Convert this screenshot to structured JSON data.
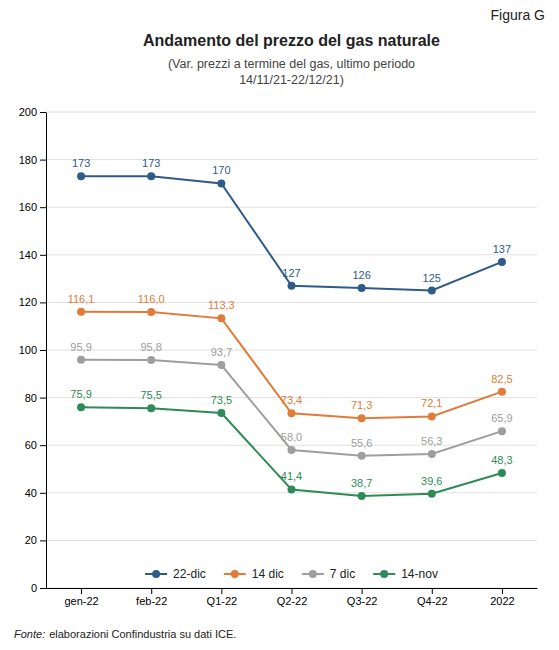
{
  "chart_data": {
    "type": "line",
    "title": "Andamento del prezzo del gas naturale",
    "subtitle": "(Var. prezzi a termine del gas, ultimo periodo\n14/11/21-22/12/21)",
    "annotations": [
      "Figura G",
      "Fonte:",
      "elaborazioni Confindustria su dati ICE."
    ],
    "categories": [
      "gen-22",
      "feb-22",
      "Q1-22",
      "Q2-22",
      "Q3-22",
      "Q4-22",
      "2022"
    ],
    "series": [
      {
        "name": "22-dic",
        "color": "#2E5B8A",
        "values": [
          173,
          173,
          170,
          127,
          126,
          125,
          137
        ],
        "value_labels": [
          "173",
          "173",
          "170",
          "127",
          "126",
          "125",
          "137"
        ]
      },
      {
        "name": "14 dic",
        "color": "#E07B39",
        "values": [
          116.1,
          116.0,
          113.3,
          73.4,
          71.3,
          72.1,
          82.5
        ],
        "value_labels": [
          "116,1",
          "116,0",
          "113,3",
          "73,4",
          "71,3",
          "72,1",
          "82,5"
        ]
      },
      {
        "name": "7 dic",
        "color": "#9E9E9E",
        "values": [
          95.9,
          95.8,
          93.7,
          58.0,
          55.6,
          56.3,
          65.9
        ],
        "value_labels": [
          "95,9",
          "95,8",
          "93,7",
          "58,0",
          "55,6",
          "56,3",
          "65,9"
        ]
      },
      {
        "name": "14-nov",
        "color": "#2E8B57",
        "values": [
          75.9,
          75.5,
          73.5,
          41.4,
          38.7,
          39.6,
          48.3
        ],
        "value_labels": [
          "75,9",
          "75,5",
          "73,5",
          "41,4",
          "38,7",
          "39,6",
          "48,3"
        ]
      }
    ],
    "ylim": [
      0,
      200
    ],
    "yticks": [
      0,
      20,
      40,
      60,
      80,
      100,
      120,
      140,
      160,
      180,
      200
    ],
    "grid": true,
    "legend": "bottom",
    "data_labels": true,
    "marker": "circle"
  }
}
